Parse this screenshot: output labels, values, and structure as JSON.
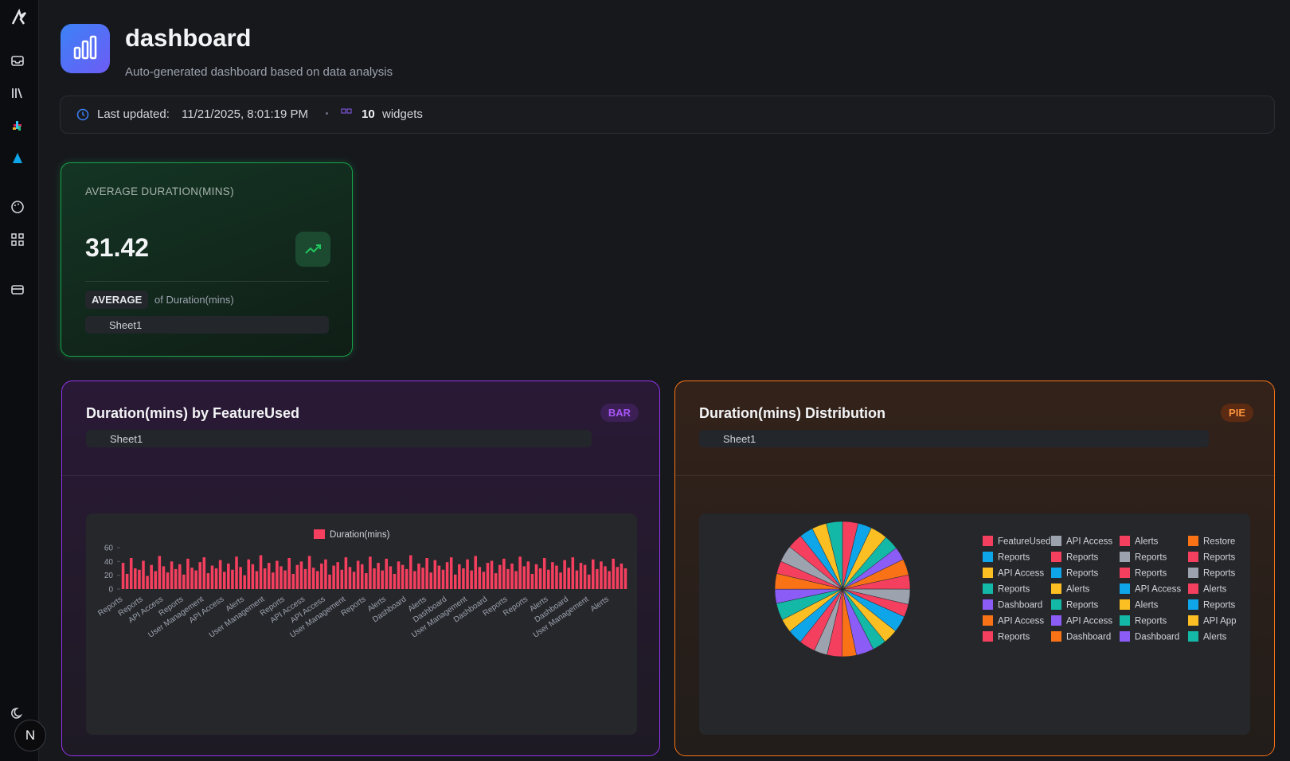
{
  "sidebar": {
    "avatar": "N"
  },
  "header": {
    "title": "dashboard",
    "subtitle": "Auto-generated dashboard based on data analysis"
  },
  "status": {
    "last_updated_label": "Last updated:",
    "last_updated": "11/21/2025, 8:01:19 PM",
    "widget_count": "10",
    "widget_label": "widgets"
  },
  "kpi": {
    "title": "AVERAGE DURATION(MINS)",
    "value": "31.42",
    "aggregation": "AVERAGE",
    "field": "of Duration(mins)",
    "source": "Sheet1"
  },
  "chart_data": [
    {
      "type": "bar",
      "title": "Duration(mins) by FeatureUsed",
      "badge": "BAR",
      "source": "Sheet1",
      "categories": [
        "Reports",
        null,
        null,
        null,
        null,
        "Reports",
        null,
        null,
        null,
        null,
        "API Access",
        null,
        null,
        null,
        null,
        "Reports",
        null,
        null,
        null,
        null,
        "User Management",
        null,
        null,
        null,
        null,
        "API Access",
        null,
        null,
        null,
        null,
        "Alerts",
        null,
        null,
        null,
        null,
        "User Management",
        null,
        null,
        null,
        null,
        "Reports",
        null,
        null,
        null,
        null,
        "API Access",
        null,
        null,
        null,
        null,
        "API Access",
        null,
        null,
        null,
        null,
        "User Management",
        null,
        null,
        null,
        null,
        "Reports",
        null,
        null,
        null,
        null,
        "Alerts",
        null,
        null,
        null,
        null,
        "Dashboard",
        null,
        null,
        null,
        null,
        "Alerts",
        null,
        null,
        null,
        null,
        "Dashboard",
        null,
        null,
        null,
        null,
        "User Management",
        null,
        null,
        null,
        null,
        "Dashboard",
        null,
        null,
        null,
        null,
        "Reports",
        null,
        null,
        null,
        null,
        "Reports",
        null,
        null,
        null,
        null,
        "Alerts",
        null,
        null,
        null,
        null,
        "Dashboard",
        null,
        null,
        null,
        null,
        "User Management",
        null,
        null,
        null,
        null,
        "Alerts",
        null,
        null,
        null,
        null
      ],
      "series": [
        {
          "name": "Duration(mins)",
          "color": "#f43f5e",
          "values": [
            38,
            22,
            45,
            30,
            28,
            41,
            19,
            35,
            26,
            48,
            33,
            24,
            40,
            29,
            36,
            21,
            44,
            31,
            27,
            39,
            46,
            23,
            34,
            30,
            42,
            25,
            37,
            28,
            47,
            32,
            20,
            43,
            36,
            26,
            49,
            30,
            38,
            24,
            41,
            33,
            27,
            45,
            22,
            35,
            40,
            29,
            48,
            31,
            26,
            37,
            43,
            21,
            34,
            39,
            28,
            46,
            32,
            25,
            41,
            36,
            23,
            47,
            30,
            38,
            27,
            44,
            33,
            22,
            40,
            35,
            29,
            49,
            26,
            37,
            31,
            45,
            24,
            42,
            34,
            28,
            39,
            46,
            21,
            36,
            30,
            43,
            27,
            48,
            32,
            25,
            38,
            41,
            23,
            35,
            44,
            29,
            37,
            26,
            47,
            33,
            40,
            22,
            36,
            30,
            45,
            28,
            39,
            34,
            24,
            42,
            31,
            46,
            27,
            38,
            35,
            21,
            43,
            29,
            40,
            33,
            26,
            44,
            32,
            37,
            30
          ]
        }
      ],
      "ylim": [
        0,
        60
      ],
      "yticks": [
        0,
        20,
        40,
        60
      ],
      "legend": "top"
    },
    {
      "type": "pie",
      "title": "Duration(mins) Distribution",
      "badge": "PIE",
      "source": "Sheet1",
      "labels": [
        "FeatureUsed",
        "Reports",
        "API Access",
        "Reports",
        "Dashboard",
        "API Access",
        "Reports",
        "API Access",
        "Reports",
        "Reports",
        "Alerts",
        "Reports",
        "API Access",
        "Dashboard",
        "Alerts",
        "Reports",
        "Reports",
        "API Access",
        "Alerts",
        "Reports",
        "Dashboard",
        "Restore",
        "Reports",
        "Reports",
        "Alerts",
        "Reports",
        "API App",
        "Alerts"
      ],
      "values": [
        32,
        28,
        35,
        30,
        27,
        33,
        29,
        31,
        26,
        34,
        30,
        28,
        36,
        29,
        31,
        27,
        33,
        30,
        28,
        35,
        29,
        32,
        26,
        34,
        31,
        28,
        30,
        33
      ],
      "colors": [
        "#f43f5e",
        "#0ea5e9",
        "#fbbf24",
        "#14b8a6",
        "#8b5cf6",
        "#f97316",
        "#f43f5e",
        "#9ca3af",
        "#f43f5e",
        "#0ea5e9",
        "#fbbf24",
        "#14b8a6",
        "#8b5cf6",
        "#f97316",
        "#f43f5e",
        "#9ca3af",
        "#f43f5e",
        "#0ea5e9",
        "#fbbf24",
        "#14b8a6",
        "#8b5cf6",
        "#f97316",
        "#f43f5e",
        "#9ca3af",
        "#f43f5e",
        "#0ea5e9",
        "#fbbf24",
        "#14b8a6"
      ],
      "legend": "right"
    }
  ]
}
